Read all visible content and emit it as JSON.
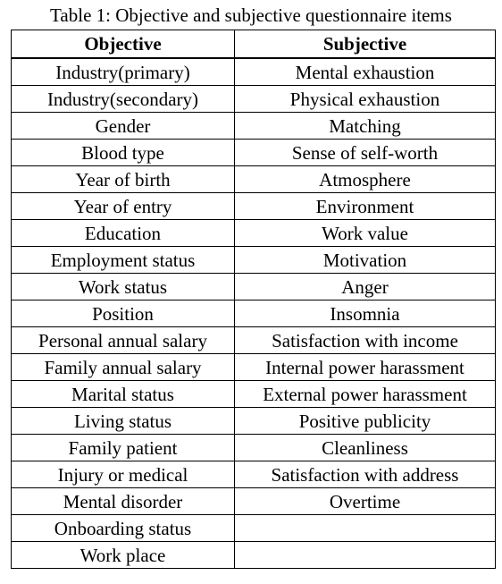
{
  "caption": "Table 1: Objective and subjective questionnaire items",
  "headers": {
    "objective": "Objective",
    "subjective": "Subjective"
  },
  "rows": [
    {
      "objective": "Industry(primary)",
      "subjective": "Mental exhaustion"
    },
    {
      "objective": "Industry(secondary)",
      "subjective": "Physical exhaustion"
    },
    {
      "objective": "Gender",
      "subjective": "Matching"
    },
    {
      "objective": "Blood type",
      "subjective": "Sense of self-worth"
    },
    {
      "objective": "Year of birth",
      "subjective": "Atmosphere"
    },
    {
      "objective": "Year of entry",
      "subjective": "Environment"
    },
    {
      "objective": "Education",
      "subjective": "Work value"
    },
    {
      "objective": "Employment status",
      "subjective": "Motivation"
    },
    {
      "objective": "Work status",
      "subjective": "Anger"
    },
    {
      "objective": "Position",
      "subjective": "Insomnia"
    },
    {
      "objective": "Personal annual salary",
      "subjective": "Satisfaction with income"
    },
    {
      "objective": "Family annual salary",
      "subjective": "Internal power harassment"
    },
    {
      "objective": "Marital status",
      "subjective": "External power harassment"
    },
    {
      "objective": "Living status",
      "subjective": "Positive publicity"
    },
    {
      "objective": "Family patient",
      "subjective": "Cleanliness"
    },
    {
      "objective": "Injury or medical",
      "subjective": "Satisfaction with address"
    },
    {
      "objective": "Mental disorder",
      "subjective": "Overtime"
    },
    {
      "objective": "Onboarding status",
      "subjective": ""
    },
    {
      "objective": "Work place",
      "subjective": ""
    }
  ]
}
